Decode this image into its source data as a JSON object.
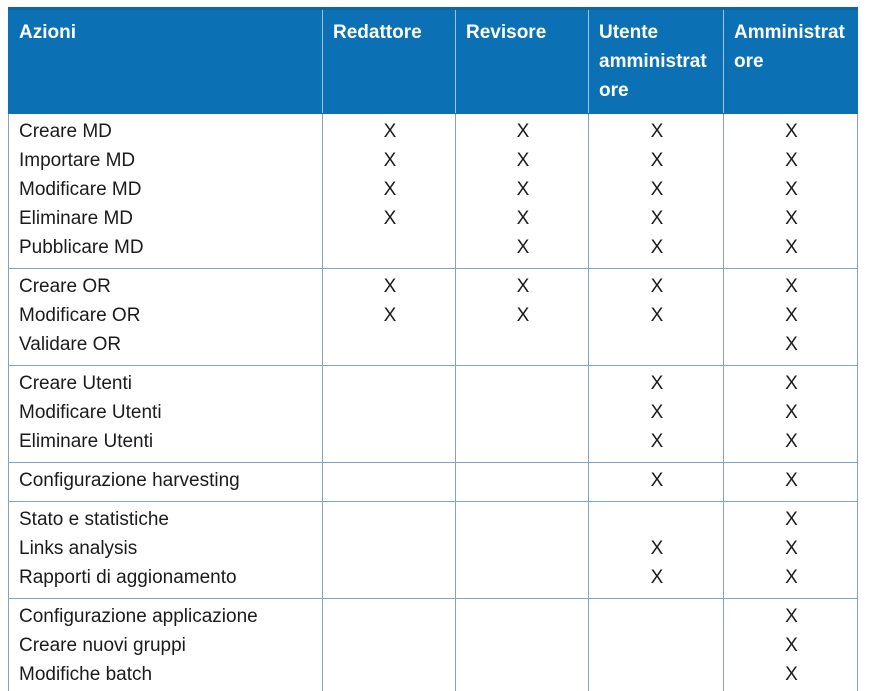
{
  "table": {
    "columns": [
      {
        "label": "Azioni"
      },
      {
        "label": "Redattore"
      },
      {
        "label": "Revisore"
      },
      {
        "label": "Utente amministratore"
      },
      {
        "label": "Amministratore"
      }
    ],
    "groups": [
      {
        "rows": [
          {
            "action": "Creare MD",
            "marks": [
              "X",
              "X",
              "X",
              "X"
            ]
          },
          {
            "action": "Importare MD",
            "marks": [
              "X",
              "X",
              "X",
              "X"
            ]
          },
          {
            "action": "Modificare MD",
            "marks": [
              "X",
              "X",
              "X",
              "X"
            ]
          },
          {
            "action": "Eliminare MD",
            "marks": [
              "X",
              "X",
              "X",
              "X"
            ]
          },
          {
            "action": "Pubblicare MD",
            "marks": [
              "",
              "X",
              "X",
              "X"
            ]
          }
        ]
      },
      {
        "rows": [
          {
            "action": "Creare OR",
            "marks": [
              "X",
              "X",
              "X",
              "X"
            ]
          },
          {
            "action": "Modificare OR",
            "marks": [
              "X",
              "X",
              "X",
              "X"
            ]
          },
          {
            "action": "Validare OR",
            "marks": [
              "",
              "",
              "",
              "X"
            ]
          }
        ]
      },
      {
        "rows": [
          {
            "action": "Creare Utenti",
            "marks": [
              "",
              "",
              "X",
              "X"
            ]
          },
          {
            "action": "Modificare Utenti",
            "marks": [
              "",
              "",
              "X",
              "X"
            ]
          },
          {
            "action": "Eliminare Utenti",
            "marks": [
              "",
              "",
              "X",
              "X"
            ]
          }
        ]
      },
      {
        "rows": [
          {
            "action": "Configurazione harvesting",
            "marks": [
              "",
              "",
              "X",
              "X"
            ]
          }
        ]
      },
      {
        "rows": [
          {
            "action": "Stato e statistiche",
            "marks": [
              "",
              "",
              "",
              "X"
            ]
          },
          {
            "action": "Links analysis",
            "marks": [
              "",
              "",
              "X",
              "X"
            ]
          },
          {
            "action": "Rapporti di aggionamento",
            "marks": [
              "",
              "",
              "X",
              "X"
            ]
          }
        ]
      },
      {
        "rows": [
          {
            "action": "Configurazione applicazione",
            "marks": [
              "",
              "",
              "",
              "X"
            ]
          },
          {
            "action": "Creare nuovi gruppi",
            "marks": [
              "",
              "",
              "",
              "X"
            ]
          },
          {
            "action": "Modifiche batch",
            "marks": [
              "",
              "",
              "",
              "X"
            ]
          }
        ]
      }
    ],
    "colors": {
      "header_bg": "#0B71B4",
      "header_text": "#FFFFFF",
      "body_border": "#85A3C2",
      "body_text": "#1B1B1B"
    }
  }
}
